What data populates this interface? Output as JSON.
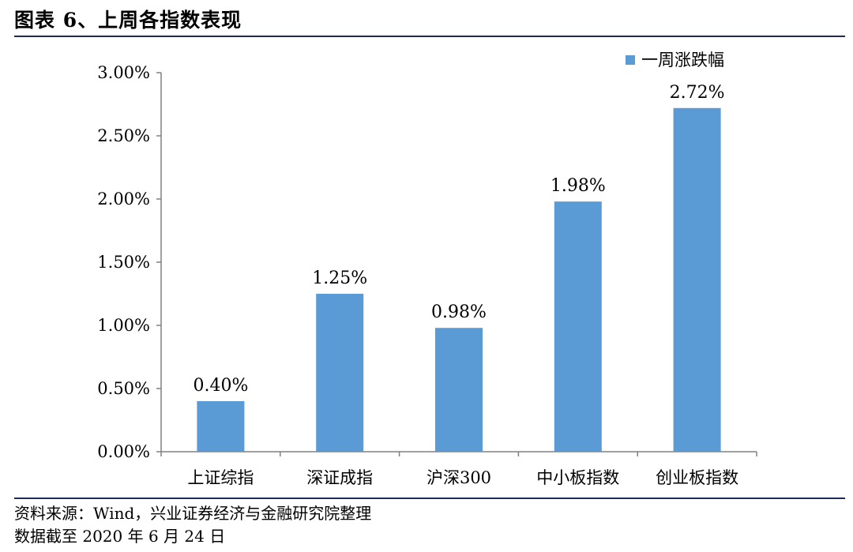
{
  "header": {
    "title": "图表 6、上周各指数表现"
  },
  "footer": {
    "source": "资料来源：Wind，兴业证券经济与金融研究院整理",
    "cutoff": "数据截至 2020 年 6 月 24 日"
  },
  "colors": {
    "bar": "#5b9bd5",
    "axis": "#808080",
    "rule": "#1f2a5a"
  },
  "chart_data": {
    "type": "bar",
    "categories": [
      "上证综指",
      "深证成指",
      "沪深300",
      "中小板指数",
      "创业板指数"
    ],
    "series": [
      {
        "name": "一周涨跌幅",
        "values": [
          0.4,
          1.25,
          0.98,
          1.98,
          2.72
        ],
        "value_labels": [
          "0.40%",
          "1.25%",
          "0.98%",
          "1.98%",
          "2.72%"
        ]
      }
    ],
    "y_ticks": [
      "0.00%",
      "0.50%",
      "1.00%",
      "1.50%",
      "2.00%",
      "2.50%",
      "3.00%"
    ],
    "ylim": [
      0,
      3.0
    ],
    "legend": "top-right",
    "grid": false
  }
}
